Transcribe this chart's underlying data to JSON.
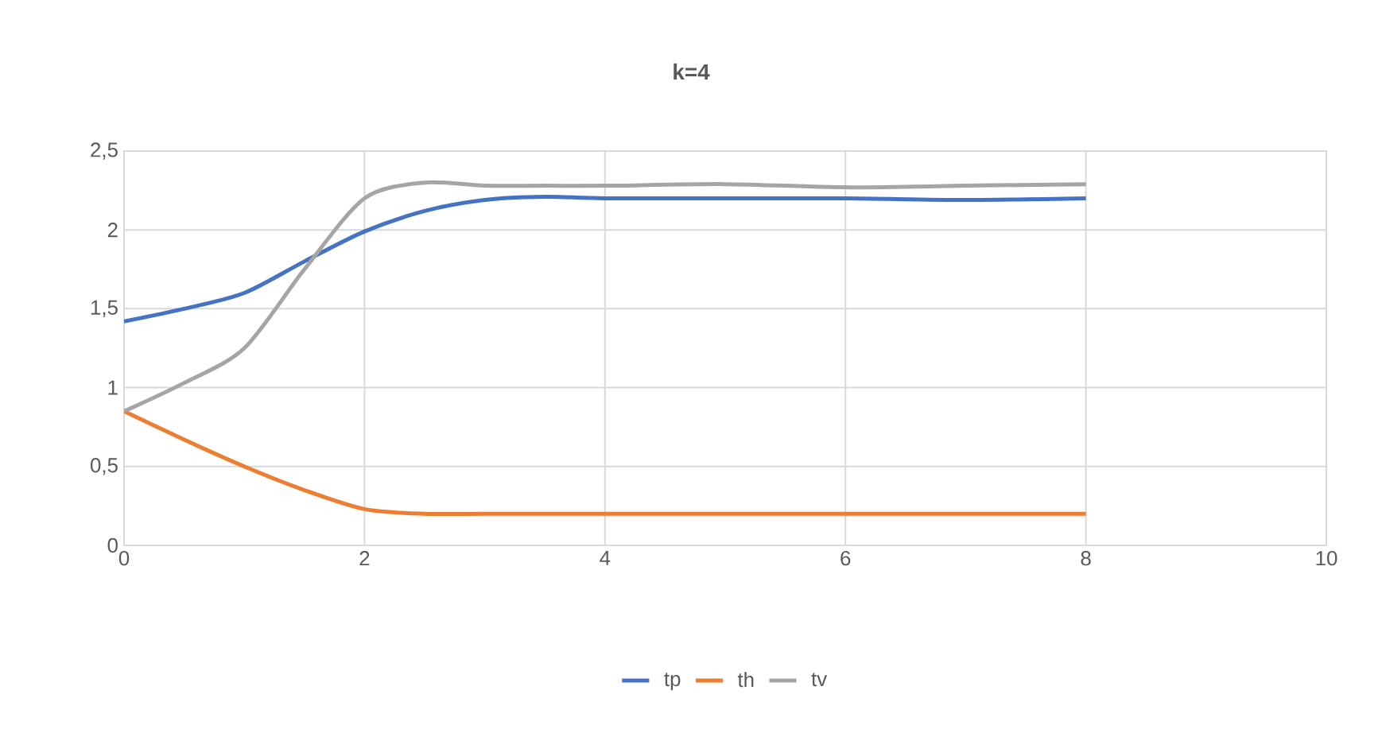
{
  "chart_data": {
    "type": "line",
    "title": "k=4",
    "x": [
      0,
      0.5,
      1,
      1.5,
      2,
      2.5,
      3,
      3.5,
      4,
      5,
      6,
      7,
      8
    ],
    "series": [
      {
        "name": "tp",
        "color": "#4472c4",
        "values": [
          1.42,
          1.5,
          1.6,
          1.8,
          1.99,
          2.12,
          2.19,
          2.21,
          2.2,
          2.2,
          2.2,
          2.19,
          2.2
        ]
      },
      {
        "name": "th",
        "color": "#ed7d31",
        "values": [
          0.85,
          0.67,
          0.5,
          0.35,
          0.23,
          0.2,
          0.2,
          0.2,
          0.2,
          0.2,
          0.2,
          0.2,
          0.2
        ]
      },
      {
        "name": "tv",
        "color": "#a5a5a5",
        "values": [
          0.85,
          1.03,
          1.25,
          1.75,
          2.2,
          2.3,
          2.28,
          2.28,
          2.28,
          2.29,
          2.27,
          2.28,
          2.29
        ]
      }
    ],
    "xlim": [
      0,
      10
    ],
    "xticks": [
      0,
      2,
      4,
      6,
      8,
      10
    ],
    "ylim": [
      0,
      2.5
    ],
    "yticks": [
      0,
      {
        "value": 0.5,
        "label": "0,5"
      },
      1,
      {
        "value": 1.5,
        "label": "1,5"
      },
      2,
      {
        "value": 2.5,
        "label": "2,5"
      }
    ],
    "grid": true,
    "legend": "bottom",
    "marker": "none",
    "line_style": "solid"
  }
}
